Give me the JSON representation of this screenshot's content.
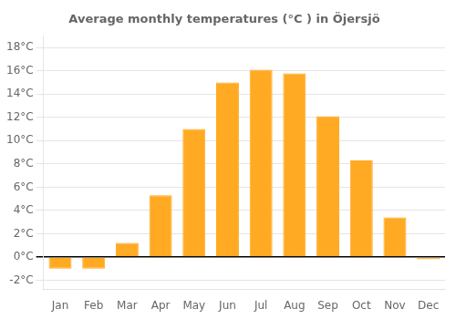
{
  "chart_data": {
    "type": "bar",
    "title": "Average monthly temperatures (°C ) in Öjersjö",
    "categories": [
      "Jan",
      "Feb",
      "Mar",
      "Apr",
      "May",
      "Jun",
      "Jul",
      "Aug",
      "Sep",
      "Oct",
      "Nov",
      "Dec"
    ],
    "values": [
      -1.0,
      -1.0,
      1.2,
      5.3,
      11.0,
      15.0,
      16.1,
      15.8,
      12.1,
      8.3,
      3.4,
      -0.2
    ],
    "color": "#FFAA22",
    "ylim": [
      -2.8,
      19.0
    ],
    "yticks": [
      {
        "value": -2,
        "label": "-2°C"
      },
      {
        "value": 0,
        "label": "0°C"
      },
      {
        "value": 2,
        "label": "2°C"
      },
      {
        "value": 4,
        "label": "4°C"
      },
      {
        "value": 6,
        "label": "6°C"
      },
      {
        "value": 8,
        "label": "8°C"
      },
      {
        "value": 10,
        "label": "10°C"
      },
      {
        "value": 12,
        "label": "12°C"
      },
      {
        "value": 14,
        "label": "14°C"
      },
      {
        "value": 16,
        "label": "16°C"
      },
      {
        "value": 18,
        "label": "18°C"
      }
    ],
    "grid": true
  }
}
